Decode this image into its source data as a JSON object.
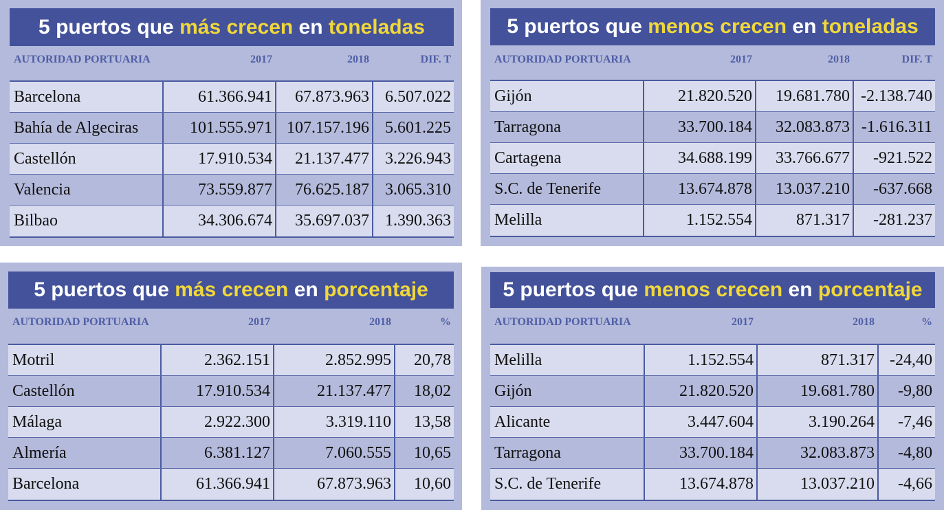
{
  "colors": {
    "panel": "#b4badb",
    "header": "#43529b",
    "highlight": "#f0d73a",
    "row_light": "#d9dcee"
  },
  "panels": [
    {
      "title": [
        {
          "t": "5 puertos que ",
          "h": false
        },
        {
          "t": "más crecen",
          "h": true
        },
        {
          "t": " en ",
          "h": false
        },
        {
          "t": "toneladas",
          "h": true
        }
      ],
      "columns": [
        "AUTORIDAD PORTUARIA",
        "2017",
        "2018",
        "DIF. T"
      ],
      "rows": [
        [
          "Barcelona",
          "61.366.941",
          "67.873.963",
          "6.507.022"
        ],
        [
          "Bahía de Algeciras",
          "101.555.971",
          "107.157.196",
          "5.601.225"
        ],
        [
          "Castellón",
          "17.910.534",
          "21.137.477",
          "3.226.943"
        ],
        [
          "Valencia",
          "73.559.877",
          "76.625.187",
          "3.065.310"
        ],
        [
          "Bilbao",
          "34.306.674",
          "35.697.037",
          "1.390.363"
        ]
      ]
    },
    {
      "title": [
        {
          "t": "5 puertos que ",
          "h": false
        },
        {
          "t": "menos crecen",
          "h": true
        },
        {
          "t": " en ",
          "h": false
        },
        {
          "t": "toneladas",
          "h": true
        }
      ],
      "columns": [
        "AUTORIDAD PORTUARIA",
        "2017",
        "2018",
        "DIF. T"
      ],
      "rows": [
        [
          "Gijón",
          "21.820.520",
          "19.681.780",
          "-2.138.740"
        ],
        [
          "Tarragona",
          "33.700.184",
          "32.083.873",
          "-1.616.311"
        ],
        [
          "Cartagena",
          "34.688.199",
          "33.766.677",
          "-921.522"
        ],
        [
          "S.C. de Tenerife",
          "13.674.878",
          "13.037.210",
          "-637.668"
        ],
        [
          "Melilla",
          "1.152.554",
          "871.317",
          "-281.237"
        ]
      ]
    },
    {
      "title": [
        {
          "t": "5 puertos que ",
          "h": false
        },
        {
          "t": "más crecen",
          "h": true
        },
        {
          "t": " en ",
          "h": false
        },
        {
          "t": "porcentaje",
          "h": true
        }
      ],
      "columns": [
        "AUTORIDAD PORTUARIA",
        "2017",
        "2018",
        "%"
      ],
      "rows": [
        [
          "Motril",
          "2.362.151",
          "2.852.995",
          "20,78"
        ],
        [
          "Castellón",
          "17.910.534",
          "21.137.477",
          "18,02"
        ],
        [
          "Málaga",
          "2.922.300",
          "3.319.110",
          "13,58"
        ],
        [
          "Almería",
          "6.381.127",
          "7.060.555",
          "10,65"
        ],
        [
          "Barcelona",
          "61.366.941",
          "67.873.963",
          "10,60"
        ]
      ]
    },
    {
      "title": [
        {
          "t": "5 puertos que ",
          "h": false
        },
        {
          "t": "menos crecen",
          "h": true
        },
        {
          "t": " en ",
          "h": false
        },
        {
          "t": "porcentaje",
          "h": true
        }
      ],
      "columns": [
        "AUTORIDAD PORTUARIA",
        "2017",
        "2018",
        "%"
      ],
      "rows": [
        [
          "Melilla",
          "1.152.554",
          "871.317",
          "-24,40"
        ],
        [
          "Gijón",
          "21.820.520",
          "19.681.780",
          "-9,80"
        ],
        [
          "Alicante",
          "3.447.604",
          "3.190.264",
          "-7,46"
        ],
        [
          "Tarragona",
          "33.700.184",
          "32.083.873",
          "-4,80"
        ],
        [
          "S.C. de Tenerife",
          "13.674.878",
          "13.037.210",
          "-4,66"
        ]
      ]
    }
  ]
}
